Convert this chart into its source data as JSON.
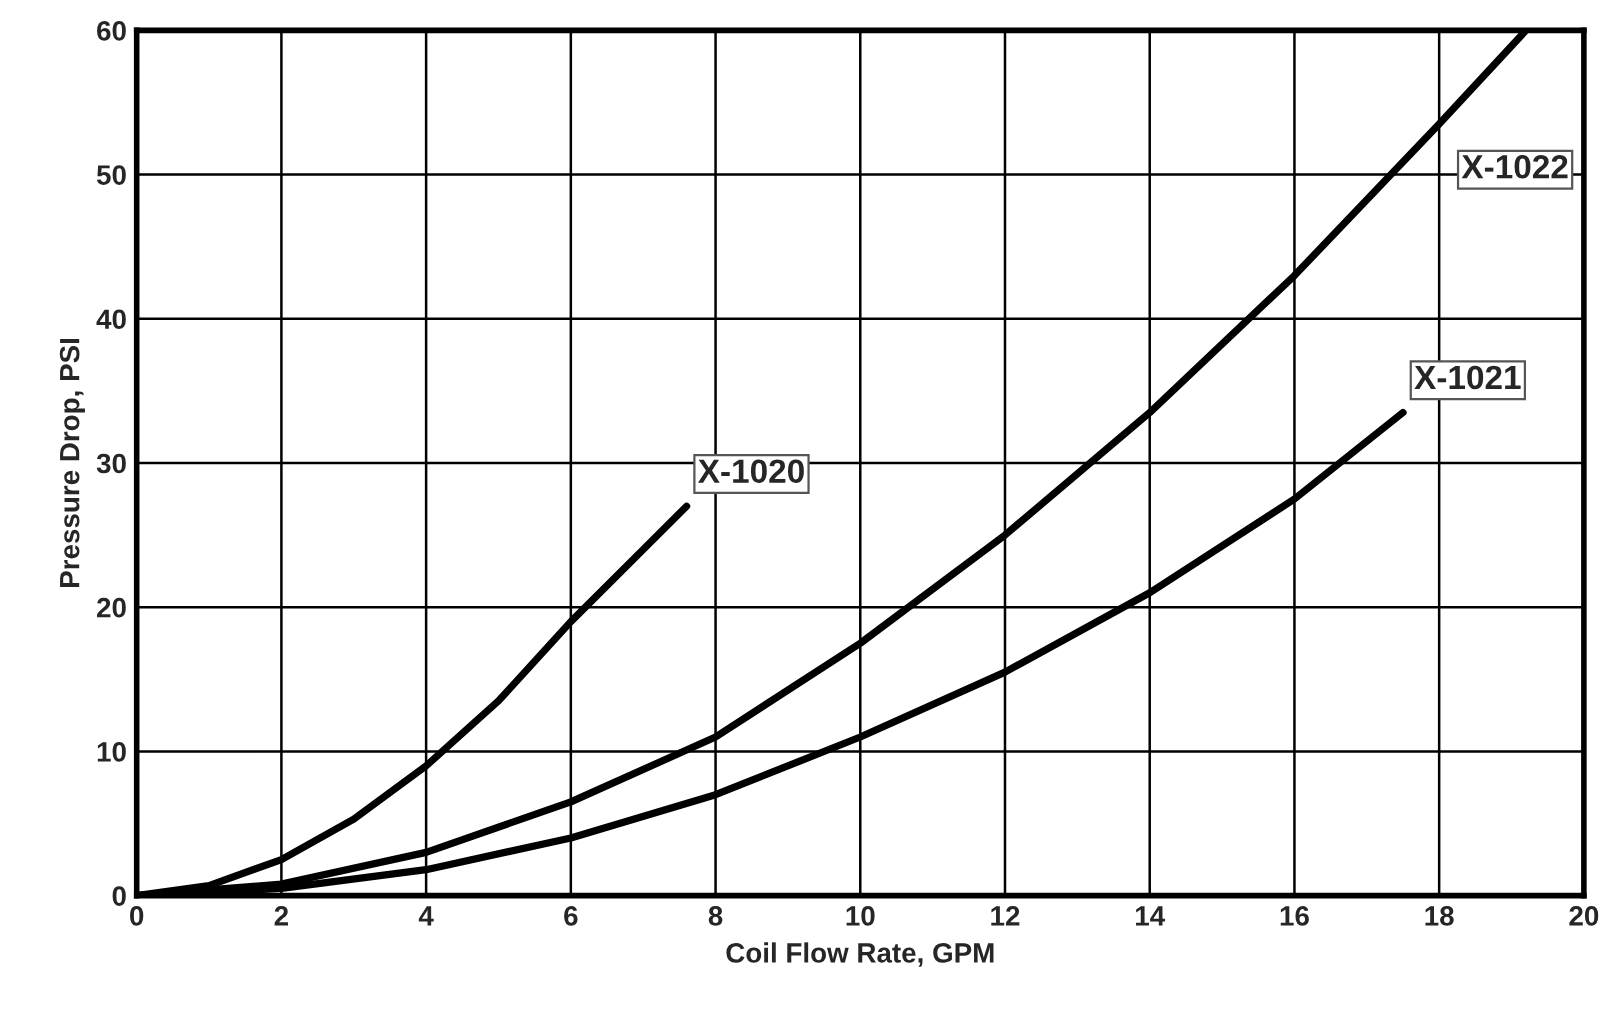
{
  "chart_data": {
    "type": "line",
    "xlabel": "Coil Flow Rate, GPM",
    "ylabel": "Pressure Drop, PSI",
    "xlim": [
      0,
      20
    ],
    "ylim": [
      0,
      60
    ],
    "xticks": [
      0,
      2,
      4,
      6,
      8,
      10,
      12,
      14,
      16,
      18,
      20
    ],
    "yticks": [
      0,
      10,
      20,
      30,
      40,
      50,
      60
    ],
    "grid": true,
    "legend": false,
    "line_style": "solid",
    "marker": "none",
    "series": [
      {
        "name": "X-1020",
        "color": "#000000",
        "x": [
          0,
          1,
          2,
          3,
          4,
          5,
          6,
          7,
          7.6
        ],
        "values": [
          0,
          0.7,
          2.5,
          5.3,
          9,
          13.5,
          19,
          24,
          27
        ]
      },
      {
        "name": "X-1021",
        "color": "#000000",
        "x": [
          0,
          2,
          4,
          6,
          8,
          10,
          12,
          14,
          16,
          17.5
        ],
        "values": [
          0,
          0.5,
          1.8,
          4,
          7,
          11,
          15.5,
          21,
          27.5,
          33.5
        ]
      },
      {
        "name": "X-1022",
        "color": "#000000",
        "x": [
          0,
          2,
          4,
          6,
          8,
          10,
          12,
          14,
          16,
          18,
          19.2
        ],
        "values": [
          0,
          0.8,
          3,
          6.5,
          11,
          17.5,
          25,
          33.5,
          43,
          53.5,
          60
        ]
      }
    ]
  }
}
